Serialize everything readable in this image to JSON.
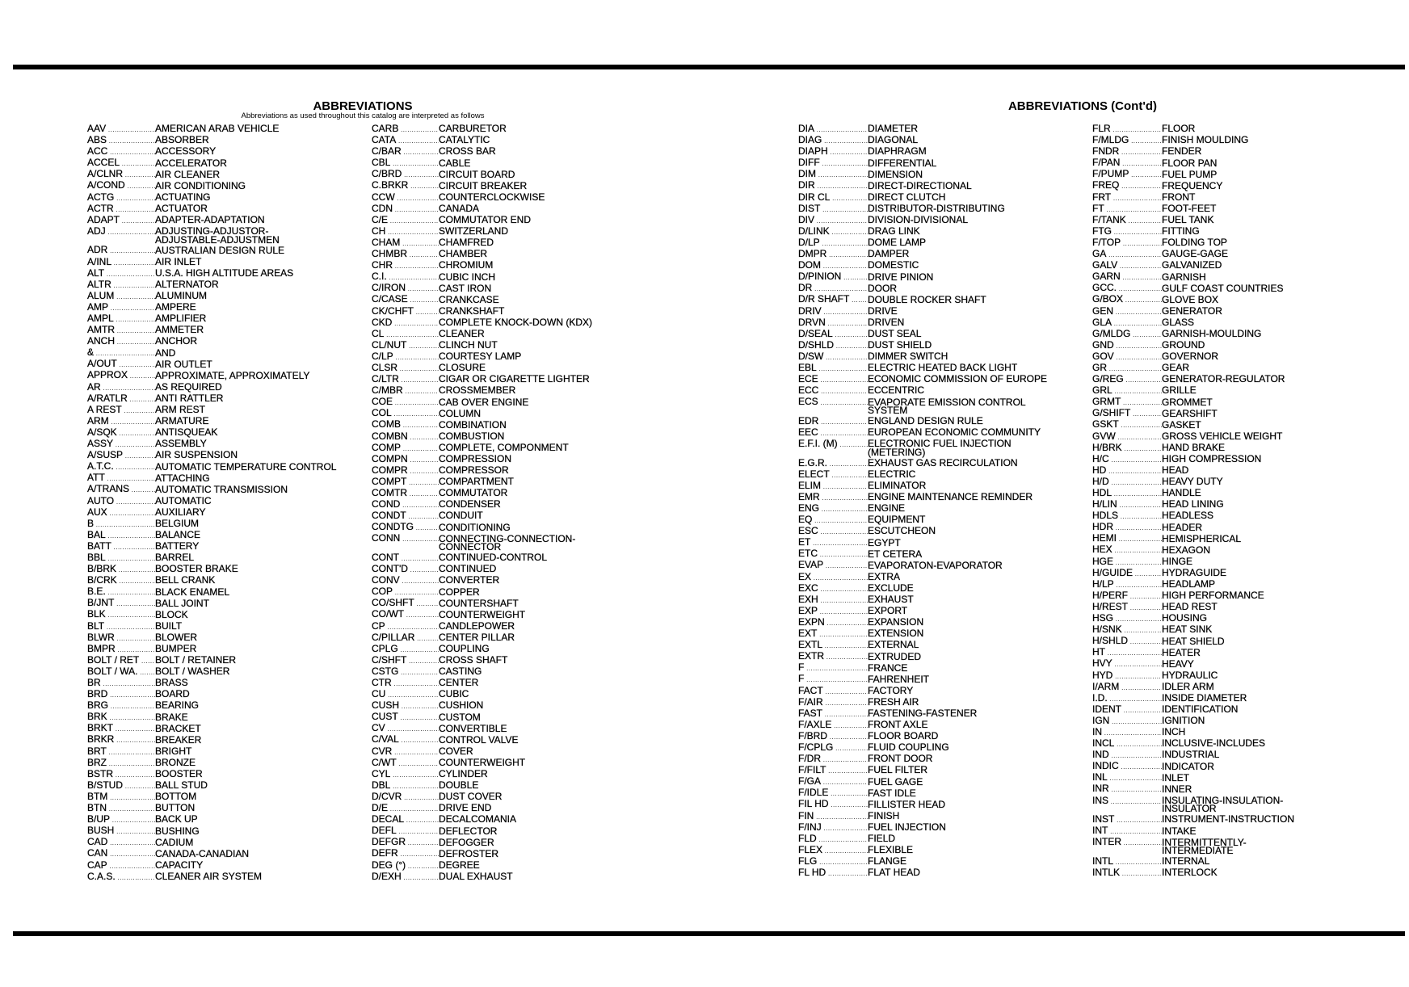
{
  "left_page": {
    "title": "ABBREVIATIONS",
    "subtitle": "Abbreviations as used throughout this catalog are interpreted as follows",
    "columns": [
      [
        {
          "a": "AAV",
          "d": "AMERICAN ARAB VEHICLE"
        },
        {
          "a": "ABS",
          "d": "ABSORBER"
        },
        {
          "a": "ACC",
          "d": "ACCESSORY"
        },
        {
          "a": "ACCEL",
          "d": "ACCELERATOR"
        },
        {
          "a": "A/CLNR",
          "d": "AIR CLEANER"
        },
        {
          "a": "A/COND",
          "d": "AIR CONDITIONING"
        },
        {
          "a": "ACTG",
          "d": "ACTUATING"
        },
        {
          "a": "ACTR",
          "d": "ACTUATOR"
        },
        {
          "a": "ADAPT",
          "d": "ADAPTER-ADAPTATION"
        },
        {
          "a": "ADJ",
          "d": "ADJUSTING-ADJUSTOR-\nADJUSTABLE-ADJUSTMEN"
        },
        {
          "a": "ADR",
          "d": "AUSTRALIAN DESIGN RULE"
        },
        {
          "a": "A/INL",
          "d": "AIR INLET"
        },
        {
          "a": "ALT",
          "d": "U.S.A. HIGH ALTITUDE AREAS"
        },
        {
          "a": "ALTR",
          "d": "ALTERNATOR"
        },
        {
          "a": "ALUM",
          "d": "ALUMINUM"
        },
        {
          "a": "AMP",
          "d": "AMPERE"
        },
        {
          "a": "AMPL",
          "d": "AMPLIFIER"
        },
        {
          "a": "AMTR",
          "d": "AMMETER"
        },
        {
          "a": "ANCH",
          "d": "ANCHOR"
        },
        {
          "a": "&",
          "d": "AND"
        },
        {
          "a": "A/OUT",
          "d": "AIR OUTLET"
        },
        {
          "a": "APPROX",
          "d": "APPROXIMATE, APPROXIMATELY"
        },
        {
          "a": "AR",
          "d": "AS REQUIRED"
        },
        {
          "a": "A/RATLR",
          "d": "ANTI RATTLER"
        },
        {
          "a": "A REST",
          "d": "ARM REST"
        },
        {
          "a": "ARM",
          "d": "ARMATURE"
        },
        {
          "a": "A/SQK",
          "d": "ANTISQUEAK"
        },
        {
          "a": "ASSY",
          "d": "ASSEMBLY"
        },
        {
          "a": "A/SUSP",
          "d": "AIR SUSPENSION"
        },
        {
          "a": "A.T.C.",
          "d": "AUTOMATIC TEMPERATURE CONTROL"
        },
        {
          "a": "ATT",
          "d": "ATTACHING"
        },
        {
          "a": "A/TRANS",
          "d": "AUTOMATIC TRANSMISSION"
        },
        {
          "a": "AUTO",
          "d": "AUTOMATIC"
        },
        {
          "a": "AUX",
          "d": "AUXILIARY"
        },
        {
          "a": "B",
          "d": "BELGIUM"
        },
        {
          "a": "BAL",
          "d": "BALANCE"
        },
        {
          "a": "BATT",
          "d": "BATTERY"
        },
        {
          "a": "BBL",
          "d": "BARREL"
        },
        {
          "a": "B/BRK",
          "d": "BOOSTER BRAKE"
        },
        {
          "a": "B/CRK",
          "d": "BELL CRANK"
        },
        {
          "a": "B.E.",
          "d": "BLACK ENAMEL"
        },
        {
          "a": "B/JNT",
          "d": "BALL JOINT"
        },
        {
          "a": "BLK",
          "d": "BLOCK"
        },
        {
          "a": "BLT",
          "d": "BUILT"
        },
        {
          "a": "BLWR",
          "d": "BLOWER"
        },
        {
          "a": "BMPR",
          "d": "BUMPER"
        },
        {
          "a": "BOLT / RET",
          "d": "BOLT / RETAINER"
        },
        {
          "a": "BOLT / WA.",
          "d": "BOLT / WASHER"
        },
        {
          "a": "BR",
          "d": "BRASS"
        },
        {
          "a": "BRD",
          "d": "BOARD"
        },
        {
          "a": "BRG",
          "d": "BEARING"
        },
        {
          "a": "BRK",
          "d": "BRAKE"
        },
        {
          "a": "BRKT",
          "d": "BRACKET"
        },
        {
          "a": "BRKR",
          "d": "BREAKER"
        },
        {
          "a": "BRT",
          "d": "BRIGHT"
        },
        {
          "a": "BRZ",
          "d": "BRONZE"
        },
        {
          "a": "BSTR",
          "d": "BOOSTER"
        },
        {
          "a": "B/STUD",
          "d": "BALL STUD"
        },
        {
          "a": "BTM",
          "d": "BOTTOM"
        },
        {
          "a": "BTN",
          "d": "BUTTON"
        },
        {
          "a": "B/UP",
          "d": "BACK UP"
        },
        {
          "a": "BUSH",
          "d": "BUSHING"
        },
        {
          "a": "CAD",
          "d": "CADIUM"
        },
        {
          "a": "CAN",
          "d": "CANADA-CANADIAN"
        },
        {
          "a": "CAP",
          "d": "CAPACITY"
        },
        {
          "a": "C.A.S.",
          "d": "CLEANER AIR SYSTEM"
        }
      ],
      [
        {
          "a": "CARB",
          "d": "CARBURETOR"
        },
        {
          "a": "CATA",
          "d": "CATALYTIC"
        },
        {
          "a": "C/BAR",
          "d": "CROSS BAR"
        },
        {
          "a": "CBL",
          "d": "CABLE"
        },
        {
          "a": "C/BRD",
          "d": "CIRCUIT BOARD"
        },
        {
          "a": "C.BRKR",
          "d": "CIRCUIT BREAKER"
        },
        {
          "a": "CCW",
          "d": "COUNTERCLOCKWISE"
        },
        {
          "a": "CDN",
          "d": "CANADA"
        },
        {
          "a": "C/E",
          "d": "COMMUTATOR END"
        },
        {
          "a": "CH",
          "d": "SWITZERLAND"
        },
        {
          "a": "CHAM",
          "d": "CHAMFRED"
        },
        {
          "a": "CHMBR",
          "d": "CHAMBER"
        },
        {
          "a": "CHR",
          "d": "CHROMIUM"
        },
        {
          "a": "C.I.",
          "d": "CUBIC INCH"
        },
        {
          "a": "C/IRON",
          "d": "CAST IRON"
        },
        {
          "a": "C/CASE",
          "d": "CRANKCASE"
        },
        {
          "a": "CK/CHFT",
          "d": "CRANKSHAFT"
        },
        {
          "a": "CKD",
          "d": "COMPLETE KNOCK-DOWN (KDX)"
        },
        {
          "a": "CL",
          "d": "CLEANER"
        },
        {
          "a": "CL/NUT",
          "d": "CLINCH NUT"
        },
        {
          "a": "C/LP",
          "d": "COURTESY LAMP"
        },
        {
          "a": "CLSR",
          "d": "CLOSURE"
        },
        {
          "a": "C/LTR",
          "d": "CIGAR OR CIGARETTE LIGHTER"
        },
        {
          "a": "C/MBR",
          "d": "CROSSMEMBER"
        },
        {
          "a": "COE",
          "d": "CAB OVER ENGINE"
        },
        {
          "a": "COL",
          "d": "COLUMN"
        },
        {
          "a": "COMB",
          "d": "COMBINATION"
        },
        {
          "a": "COMBN",
          "d": "COMBUSTION"
        },
        {
          "a": "COMP",
          "d": "COMPLETE, COMPONMENT"
        },
        {
          "a": "COMPN",
          "d": "COMPRESSION"
        },
        {
          "a": "COMPR",
          "d": "COMPRESSOR"
        },
        {
          "a": "COMPT",
          "d": "COMPARTMENT"
        },
        {
          "a": "COMTR",
          "d": "COMMUTATOR"
        },
        {
          "a": "COND",
          "d": "CONDENSER"
        },
        {
          "a": "CONDT",
          "d": "CONDUIT"
        },
        {
          "a": "CONDTG",
          "d": "CONDITIONING"
        },
        {
          "a": "CONN",
          "d": "CONNECTING-CONNECTION-\nCONNECTOR"
        },
        {
          "a": "CONT",
          "d": "CONTINUED-CONTROL"
        },
        {
          "a": "CONT'D",
          "d": "CONTINUED"
        },
        {
          "a": "CONV",
          "d": "CONVERTER"
        },
        {
          "a": "COP",
          "d": "COPPER"
        },
        {
          "a": "CO/SHFT",
          "d": "COUNTERSHAFT"
        },
        {
          "a": "CO/WT",
          "d": "COUNTERWEIGHT"
        },
        {
          "a": "CP",
          "d": "CANDLEPOWER"
        },
        {
          "a": "C/PILLAR",
          "d": "CENTER PILLAR"
        },
        {
          "a": "CPLG",
          "d": "COUPLING"
        },
        {
          "a": "C/SHFT",
          "d": "CROSS SHAFT"
        },
        {
          "a": "CSTG",
          "d": "CASTING"
        },
        {
          "a": "CTR",
          "d": "CENTER"
        },
        {
          "a": "CU",
          "d": "CUBIC"
        },
        {
          "a": "CUSH",
          "d": "CUSHION"
        },
        {
          "a": "CUST",
          "d": "CUSTOM"
        },
        {
          "a": "CV",
          "d": "CONVERTIBLE"
        },
        {
          "a": "C/VAL",
          "d": "CONTROL VALVE"
        },
        {
          "a": "CVR",
          "d": "COVER"
        },
        {
          "a": "C/WT",
          "d": "COUNTERWEIGHT"
        },
        {
          "a": "CYL",
          "d": "CYLINDER"
        },
        {
          "a": "DBL",
          "d": "DOUBLE"
        },
        {
          "a": "D/CVR",
          "d": "DUST COVER"
        },
        {
          "a": "D/E",
          "d": "DRIVE END"
        },
        {
          "a": "DECAL",
          "d": "DECALCOMANIA"
        },
        {
          "a": "DEFL",
          "d": "DEFLECTOR"
        },
        {
          "a": "DEFGR",
          "d": "DEFOGGER"
        },
        {
          "a": "DEFR",
          "d": "DEFROSTER"
        },
        {
          "a": "DEG (°)",
          "d": "DEGREE"
        },
        {
          "a": "D/EXH",
          "d": "DUAL EXHAUST"
        }
      ]
    ]
  },
  "right_page": {
    "title": "ABBREVIATIONS (Cont'd)",
    "columns": [
      [
        {
          "a": "DIA",
          "d": "DIAMETER"
        },
        {
          "a": "DIAG",
          "d": "DIAGONAL"
        },
        {
          "a": "DIAPH",
          "d": "DIAPHRAGM"
        },
        {
          "a": "DIFF",
          "d": "DIFFERENTIAL"
        },
        {
          "a": "DIM",
          "d": "DIMENSION"
        },
        {
          "a": "DIR",
          "d": "DIRECT-DIRECTIONAL"
        },
        {
          "a": "DIR CL",
          "d": "DIRECT CLUTCH"
        },
        {
          "a": "DIST",
          "d": "DISTRIBUTOR-DISTRIBUTING"
        },
        {
          "a": "DIV",
          "d": "DIVISION-DIVISIONAL"
        },
        {
          "a": "D/LINK",
          "d": "DRAG LINK"
        },
        {
          "a": "D/LP",
          "d": "DOME LAMP"
        },
        {
          "a": "DMPR",
          "d": "DAMPER"
        },
        {
          "a": "DOM",
          "d": "DOMESTIC"
        },
        {
          "a": "D/PINION",
          "d": "DRIVE PINION"
        },
        {
          "a": "DR",
          "d": "DOOR"
        },
        {
          "a": "D/R SHAFT",
          "d": "DOUBLE ROCKER SHAFT"
        },
        {
          "a": "DRIV",
          "d": "DRIVE"
        },
        {
          "a": "DRVN",
          "d": "DRIVEN"
        },
        {
          "a": "D/SEAL",
          "d": "DUST SEAL"
        },
        {
          "a": "D/SHLD",
          "d": "DUST SHIELD"
        },
        {
          "a": "D/SW",
          "d": "DIMMER SWITCH"
        },
        {
          "a": "EBL",
          "d": "ELECTRIC HEATED BACK LIGHT"
        },
        {
          "a": "ECE",
          "d": "ECONOMIC COMMISSION OF EUROPE"
        },
        {
          "a": "ECC",
          "d": "ECCENTRIC"
        },
        {
          "a": "ECS",
          "d": "EVAPORATE EMISSION CONTROL\nSYSTEM"
        },
        {
          "a": "EDR",
          "d": "ENGLAND DESIGN RULE"
        },
        {
          "a": "EEC",
          "d": "EUROPEAN ECONOMIC COMMUNITY"
        },
        {
          "a": "E.F.I. (M)",
          "d": "ELECTRONIC FUEL INJECTION\n(METERING)"
        },
        {
          "a": "E.G.R.",
          "d": "EXHAUST GAS RECIRCULATION"
        },
        {
          "a": "ELECT",
          "d": "ELECTRIC"
        },
        {
          "a": "ELIM",
          "d": "ELIMINATOR"
        },
        {
          "a": "EMR",
          "d": "ENGINE MAINTENANCE REMINDER"
        },
        {
          "a": "ENG",
          "d": "ENGINE"
        },
        {
          "a": "EQ",
          "d": "EQUIPMENT"
        },
        {
          "a": "ESC",
          "d": "ESCUTCHEON"
        },
        {
          "a": "ET",
          "d": "EGYPT"
        },
        {
          "a": "ETC",
          "d": "ET CETERA"
        },
        {
          "a": "EVAP",
          "d": "EVAPORATON-EVAPORATOR"
        },
        {
          "a": "EX",
          "d": "EXTRA"
        },
        {
          "a": "EXC",
          "d": "EXCLUDE"
        },
        {
          "a": "EXH",
          "d": "EXHAUST"
        },
        {
          "a": "EXP",
          "d": "EXPORT"
        },
        {
          "a": "EXPN",
          "d": "EXPANSION"
        },
        {
          "a": "EXT",
          "d": "EXTENSION"
        },
        {
          "a": "EXTL",
          "d": "EXTERNAL"
        },
        {
          "a": "EXTR",
          "d": "EXTRUDED"
        },
        {
          "a": "F",
          "d": "FRANCE"
        },
        {
          "a": "F",
          "d": "FAHRENHEIT"
        },
        {
          "a": "FACT",
          "d": "FACTORY"
        },
        {
          "a": "F/AIR",
          "d": "FRESH AIR"
        },
        {
          "a": "FAST",
          "d": "FASTENING-FASTENER"
        },
        {
          "a": "F/AXLE",
          "d": "FRONT AXLE"
        },
        {
          "a": "F/BRD",
          "d": "FLOOR BOARD"
        },
        {
          "a": "F/CPLG",
          "d": "FLUID COUPLING"
        },
        {
          "a": "F/DR",
          "d": "FRONT DOOR"
        },
        {
          "a": "F/FILT",
          "d": "FUEL FILTER"
        },
        {
          "a": "F/GA",
          "d": "FUEL GAGE"
        },
        {
          "a": "F/IDLE",
          "d": "FAST IDLE"
        },
        {
          "a": "FIL HD",
          "d": "FILLISTER HEAD"
        },
        {
          "a": "FIN",
          "d": "FINISH"
        },
        {
          "a": "F/INJ",
          "d": "FUEL INJECTION"
        },
        {
          "a": "FLD",
          "d": "FIELD"
        },
        {
          "a": "FLEX",
          "d": "FLEXIBLE"
        },
        {
          "a": "FLG",
          "d": "FLANGE"
        },
        {
          "a": "FL HD",
          "d": "FLAT HEAD"
        }
      ],
      [
        {
          "a": "FLR",
          "d": "FLOOR"
        },
        {
          "a": "F/MLDG",
          "d": "FINISH MOULDING"
        },
        {
          "a": "FNDR",
          "d": "FENDER"
        },
        {
          "a": "F/PAN",
          "d": "FLOOR PAN"
        },
        {
          "a": "F/PUMP",
          "d": "FUEL PUMP"
        },
        {
          "a": "FREQ",
          "d": "FREQUENCY"
        },
        {
          "a": "FRT",
          "d": "FRONT"
        },
        {
          "a": "FT",
          "d": "FOOT-FEET"
        },
        {
          "a": "F/TANK",
          "d": "FUEL TANK"
        },
        {
          "a": "FTG",
          "d": "FITTING"
        },
        {
          "a": "F/TOP",
          "d": "FOLDING TOP"
        },
        {
          "a": "GA",
          "d": "GAUGE-GAGE"
        },
        {
          "a": "GALV",
          "d": "GALVANIZED"
        },
        {
          "a": "GARN",
          "d": "GARNISH"
        },
        {
          "a": "GCC.",
          "d": "GULF COAST COUNTRIES"
        },
        {
          "a": "G/BOX",
          "d": "GLOVE BOX"
        },
        {
          "a": "GEN",
          "d": "GENERATOR"
        },
        {
          "a": "GLA",
          "d": "GLASS"
        },
        {
          "a": "G/MLDG",
          "d": "GARNISH-MOULDING"
        },
        {
          "a": "GND",
          "d": "GROUND"
        },
        {
          "a": "GOV",
          "d": "GOVERNOR"
        },
        {
          "a": "GR",
          "d": "GEAR"
        },
        {
          "a": "G/REG",
          "d": "GENERATOR-REGULATOR"
        },
        {
          "a": "GRL",
          "d": "GRILLE"
        },
        {
          "a": "GRMT",
          "d": "GROMMET"
        },
        {
          "a": "G/SHIFT",
          "d": "GEARSHIFT"
        },
        {
          "a": "GSKT",
          "d": "GASKET"
        },
        {
          "a": "GVW",
          "d": "GROSS VEHICLE WEIGHT"
        },
        {
          "a": "H/BRK",
          "d": "HAND BRAKE"
        },
        {
          "a": "H/C",
          "d": "HIGH COMPRESSION"
        },
        {
          "a": "HD",
          "d": "HEAD"
        },
        {
          "a": "H/D",
          "d": "HEAVY DUTY"
        },
        {
          "a": "HDL",
          "d": "HANDLE"
        },
        {
          "a": "H/LIN",
          "d": "HEAD LINING"
        },
        {
          "a": "HDLS",
          "d": "HEADLESS"
        },
        {
          "a": "HDR",
          "d": "HEADER"
        },
        {
          "a": "HEMI",
          "d": "HEMISPHERICAL"
        },
        {
          "a": "HEX",
          "d": "HEXAGON"
        },
        {
          "a": "HGE",
          "d": "HINGE"
        },
        {
          "a": "H/GUIDE",
          "d": "HYDRAGUIDE"
        },
        {
          "a": "H/LP",
          "d": "HEADLAMP"
        },
        {
          "a": "H/PERF",
          "d": "HIGH PERFORMANCE"
        },
        {
          "a": "H/REST",
          "d": "HEAD REST"
        },
        {
          "a": "HSG",
          "d": "HOUSING"
        },
        {
          "a": "H/SNK",
          "d": "HEAT SINK"
        },
        {
          "a": "H/SHLD",
          "d": "HEAT SHIELD"
        },
        {
          "a": "HT",
          "d": "HEATER"
        },
        {
          "a": "HVY",
          "d": "HEAVY"
        },
        {
          "a": "HYD",
          "d": "HYDRAULIC"
        },
        {
          "a": "I/ARM",
          "d": "IDLER ARM"
        },
        {
          "a": "I.D.",
          "d": "INSIDE DIAMETER"
        },
        {
          "a": "IDENT",
          "d": "IDENTIFICATION"
        },
        {
          "a": "IGN",
          "d": "IGNITION"
        },
        {
          "a": "IN",
          "d": "INCH"
        },
        {
          "a": "INCL",
          "d": "INCLUSIVE-INCLUDES"
        },
        {
          "a": "IND",
          "d": "INDUSTRIAL"
        },
        {
          "a": "INDIC",
          "d": "INDICATOR"
        },
        {
          "a": "INL",
          "d": "INLET"
        },
        {
          "a": "INR",
          "d": "INNER"
        },
        {
          "a": "INS",
          "d": "INSULATING-INSULATION-\nINSULATOR"
        },
        {
          "a": "INST",
          "d": "INSTRUMENT-INSTRUCTION"
        },
        {
          "a": "INT",
          "d": "INTAKE"
        },
        {
          "a": "INTER",
          "d": "INTERMITTENTLY-\nINTERMEDIATE"
        },
        {
          "a": "INTL",
          "d": "INTERNAL"
        },
        {
          "a": "INTLK",
          "d": "INTERLOCK"
        }
      ]
    ]
  }
}
